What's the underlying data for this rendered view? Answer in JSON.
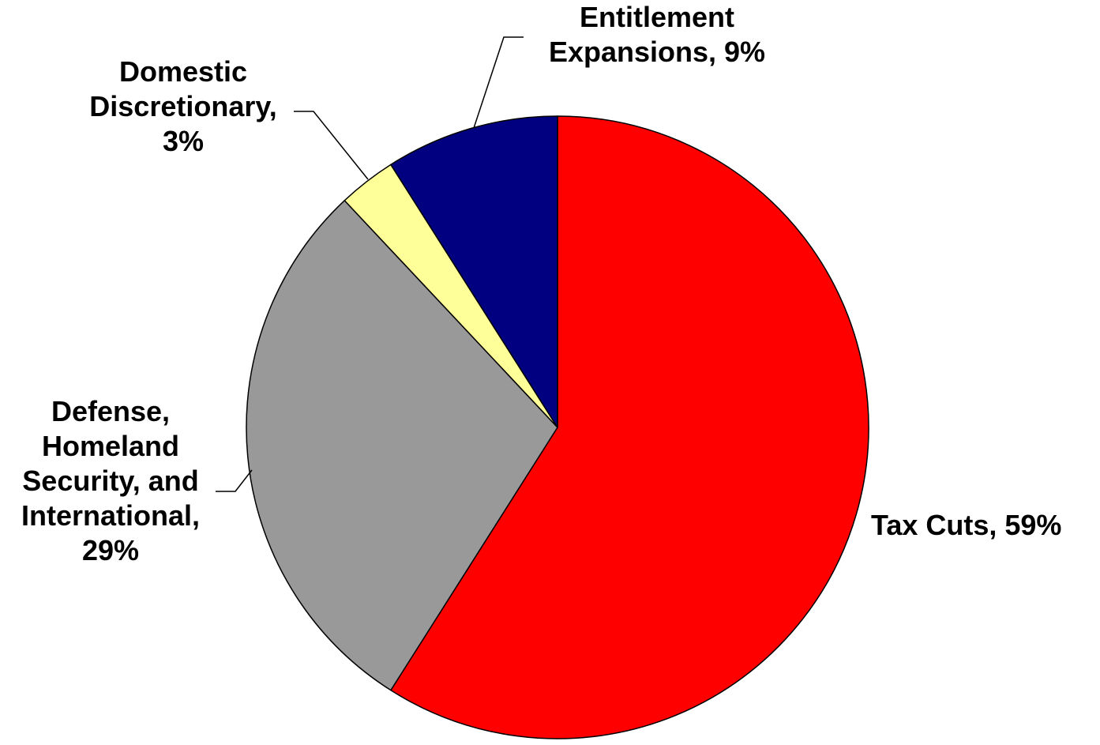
{
  "chart_data": {
    "type": "pie",
    "title": "",
    "slices": [
      {
        "name": "Tax Cuts",
        "value": 59,
        "label_lines": [
          "Tax Cuts, 59%"
        ],
        "color": "#FF0000"
      },
      {
        "name": "Defense, Homeland Security, and International",
        "value": 29,
        "label_lines": [
          "Defense,",
          "Homeland",
          "Security, and",
          "International,",
          "29%"
        ],
        "color": "#999999"
      },
      {
        "name": "Domestic Discretionary",
        "value": 3,
        "label_lines": [
          "Domestic",
          "Discretionary,",
          "3%"
        ],
        "color": "#FFFF99"
      },
      {
        "name": "Entitlement Expansions",
        "value": 9,
        "label_lines": [
          "Entitlement",
          "Expansions, 9%"
        ],
        "color": "#000080"
      }
    ],
    "start_angle": "12 o'clock",
    "direction": "clockwise",
    "legend": "none"
  }
}
